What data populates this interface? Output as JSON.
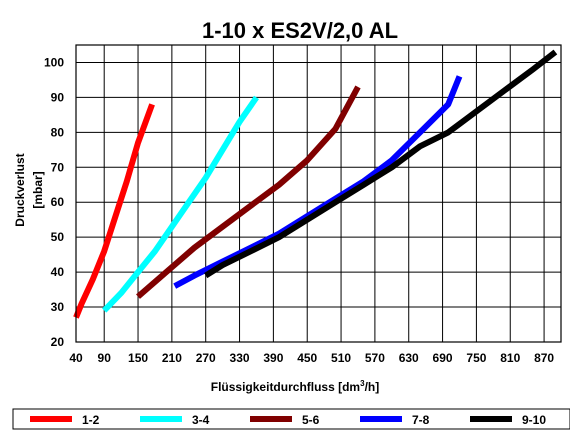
{
  "chart_data": {
    "type": "line",
    "title": "1-10 x ES2V/2,0 AL",
    "xlabel": "Flüssigkeitdurchfluss [dm³/h]",
    "xlabel_main": "Flüssigkeitdurchfluss [dm",
    "xlabel_sup": "3",
    "xlabel_tail": "/h]",
    "ylabel": "Druckverlust [mbar]",
    "ylabel_main": "Druckverlust",
    "ylabel_unit": "[mbar]",
    "xlim": [
      40,
      900
    ],
    "ylim": [
      20,
      105
    ],
    "xticks": [
      40,
      90,
      150,
      210,
      270,
      330,
      390,
      450,
      510,
      570,
      630,
      690,
      750,
      810,
      870
    ],
    "yticks": [
      20,
      30,
      40,
      50,
      60,
      70,
      80,
      90,
      100
    ],
    "grid": true,
    "legend_placement": "bottom",
    "series": [
      {
        "name": "1-2",
        "color": "#ff0000",
        "x": [
          40,
          50,
          70,
          90,
          110,
          130,
          150,
          175
        ],
        "y": [
          27,
          31,
          38,
          46,
          56,
          66,
          77,
          88
        ]
      },
      {
        "name": "3-4",
        "color": "#00ffff",
        "x": [
          90,
          120,
          150,
          180,
          210,
          240,
          270,
          300,
          330,
          360
        ],
        "y": [
          29,
          34,
          40,
          46,
          53,
          60,
          67,
          75,
          83,
          90
        ]
      },
      {
        "name": "5-6",
        "color": "#800000",
        "x": [
          150,
          200,
          250,
          300,
          350,
          400,
          450,
          500,
          540
        ],
        "y": [
          33,
          40,
          47,
          53,
          59,
          65,
          72,
          81,
          93
        ]
      },
      {
        "name": "7-8",
        "color": "#0000ff",
        "x": [
          215,
          250,
          300,
          350,
          400,
          450,
          500,
          550,
          600,
          650,
          700,
          720
        ],
        "y": [
          36,
          39,
          43,
          47,
          51,
          56,
          61,
          66,
          72,
          80,
          88,
          96
        ]
      },
      {
        "name": "9-10",
        "color": "#000000",
        "x": [
          270,
          300,
          350,
          400,
          450,
          500,
          550,
          600,
          650,
          700,
          750,
          800,
          850,
          890
        ],
        "y": [
          39,
          42,
          46,
          50,
          55,
          60,
          65,
          70,
          76,
          80,
          86,
          92,
          98,
          103
        ]
      }
    ]
  }
}
